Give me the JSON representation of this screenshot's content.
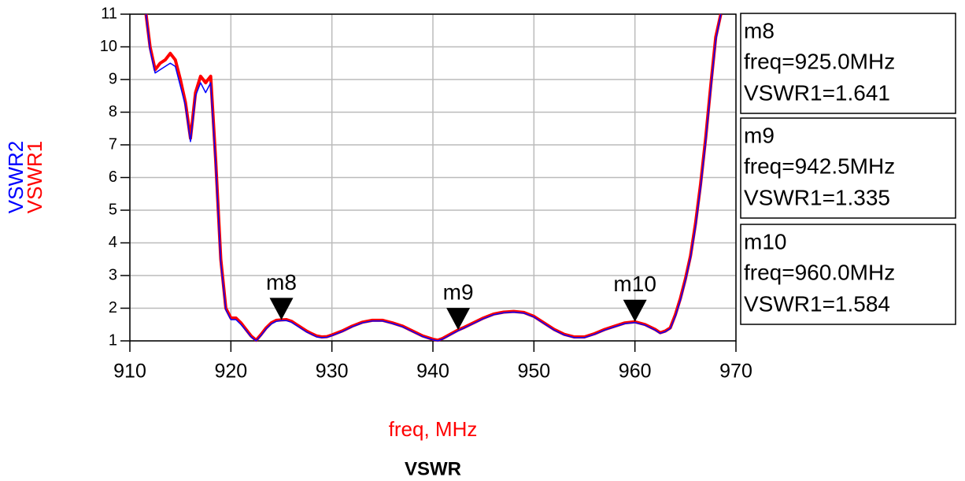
{
  "chart_data": {
    "type": "line",
    "title": "VSWR",
    "xlabel": "freq, MHz",
    "x": [
      911.6,
      912,
      912.5,
      913,
      913.5,
      914,
      914.5,
      915,
      915.5,
      916,
      916.5,
      917,
      917.5,
      918,
      918.5,
      919,
      919.5,
      920,
      920.5,
      921,
      921.5,
      922,
      922.5,
      923,
      923.5,
      924,
      924.5,
      925,
      925.5,
      926,
      926.5,
      927,
      927.5,
      928,
      928.5,
      929,
      929.5,
      930,
      931,
      932,
      933,
      934,
      935,
      936,
      937,
      938,
      939,
      940,
      940.5,
      941,
      942,
      942.5,
      943,
      944,
      945,
      946,
      947,
      948,
      949,
      950,
      951,
      952,
      953,
      954,
      955,
      956,
      957,
      958,
      959,
      960,
      961,
      962,
      962.5,
      963,
      963.5,
      964,
      964.5,
      965,
      965.5,
      966,
      966.5,
      967,
      967.5,
      968,
      968.5
    ],
    "series": [
      {
        "name": "VSWR1",
        "color": "#ff0000",
        "values": [
          11,
          10.0,
          9.3,
          9.5,
          9.6,
          9.8,
          9.6,
          9.0,
          8.3,
          7.2,
          8.6,
          9.1,
          8.9,
          9.1,
          6.5,
          3.5,
          2.0,
          1.7,
          1.7,
          1.55,
          1.35,
          1.15,
          1.02,
          1.2,
          1.4,
          1.55,
          1.63,
          1.641,
          1.65,
          1.6,
          1.5,
          1.4,
          1.3,
          1.22,
          1.15,
          1.12,
          1.13,
          1.18,
          1.3,
          1.45,
          1.57,
          1.63,
          1.63,
          1.55,
          1.45,
          1.3,
          1.15,
          1.05,
          1.02,
          1.08,
          1.25,
          1.335,
          1.4,
          1.55,
          1.7,
          1.82,
          1.88,
          1.9,
          1.87,
          1.75,
          1.55,
          1.35,
          1.2,
          1.12,
          1.12,
          1.22,
          1.35,
          1.45,
          1.55,
          1.584,
          1.5,
          1.35,
          1.25,
          1.3,
          1.4,
          1.8,
          2.3,
          2.9,
          3.6,
          4.6,
          5.8,
          7.2,
          8.8,
          10.3,
          11
        ]
      },
      {
        "name": "VSWR2",
        "color": "#0000ff",
        "values": [
          11,
          9.9,
          9.2,
          9.3,
          9.4,
          9.5,
          9.4,
          8.8,
          8.2,
          7.1,
          8.5,
          8.9,
          8.6,
          8.9,
          6.4,
          3.4,
          1.95,
          1.65,
          1.65,
          1.5,
          1.32,
          1.12,
          1.0,
          1.17,
          1.37,
          1.52,
          1.6,
          1.62,
          1.62,
          1.57,
          1.47,
          1.37,
          1.27,
          1.2,
          1.12,
          1.1,
          1.11,
          1.16,
          1.28,
          1.43,
          1.55,
          1.61,
          1.61,
          1.53,
          1.43,
          1.28,
          1.13,
          1.03,
          1.0,
          1.06,
          1.23,
          1.31,
          1.38,
          1.53,
          1.68,
          1.8,
          1.86,
          1.88,
          1.85,
          1.73,
          1.53,
          1.33,
          1.18,
          1.1,
          1.1,
          1.2,
          1.33,
          1.43,
          1.53,
          1.56,
          1.48,
          1.33,
          1.23,
          1.28,
          1.38,
          1.75,
          2.25,
          2.85,
          3.55,
          4.5,
          5.7,
          7.1,
          8.7,
          10.2,
          11
        ]
      }
    ],
    "xlim": [
      910,
      970
    ],
    "xticks": [
      910,
      920,
      930,
      940,
      950,
      960,
      970
    ],
    "ylim": [
      1,
      11
    ],
    "yticks": [
      1,
      2,
      3,
      4,
      5,
      6,
      7,
      8,
      9,
      10,
      11
    ],
    "grid": true,
    "markers": [
      {
        "name": "m8",
        "x": {
          "value": 925,
          "label": "freq=925.0MHz"
        },
        "y": {
          "value": 1.641,
          "label": "VSWR1=1.641"
        }
      },
      {
        "name": "m9",
        "x": {
          "value": 942.5,
          "label": "freq=942.5MHz"
        },
        "y": {
          "value": 1.335,
          "label": "VSWR1=1.335"
        }
      },
      {
        "name": "m10",
        "x": {
          "value": 960,
          "label": "freq=960.0MHz"
        },
        "y": {
          "value": 1.584,
          "label": "VSWR1=1.584"
        }
      }
    ]
  }
}
